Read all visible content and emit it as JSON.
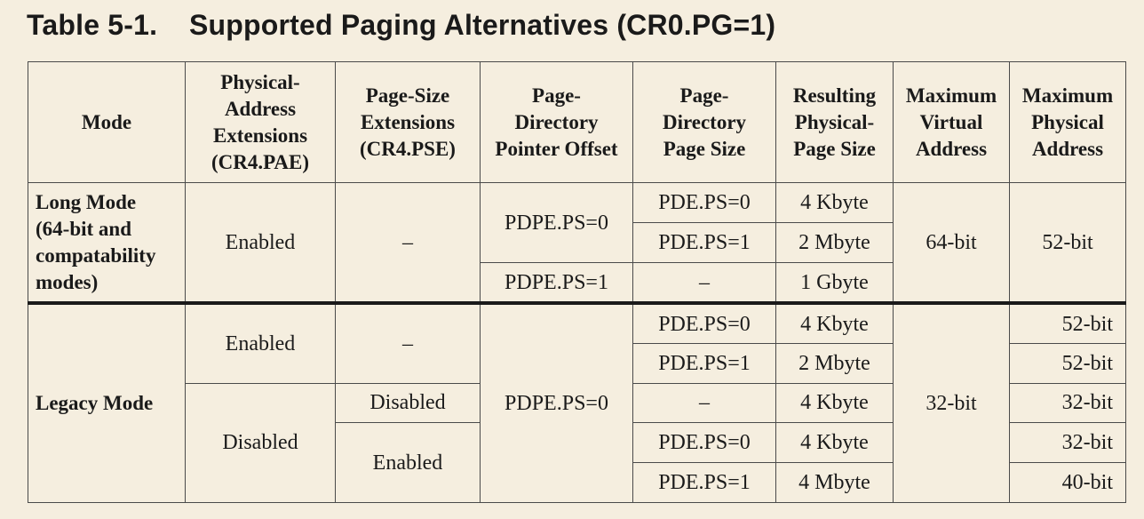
{
  "title": {
    "number": "Table 5-1.",
    "text": "Supported Paging Alternatives (CR0.PG=1)"
  },
  "headers": [
    [
      "Mode"
    ],
    [
      "Physical-",
      "Address",
      "Extensions",
      "(CR4.PAE)"
    ],
    [
      "Page-Size",
      "Extensions",
      "(CR4.PSE)"
    ],
    [
      "Page-",
      "Directory",
      "Pointer Offset"
    ],
    [
      "Page-",
      "Directory",
      "Page Size"
    ],
    [
      "Resulting",
      "Physical-",
      "Page Size"
    ],
    [
      "Maximum",
      "Virtual",
      "Address"
    ],
    [
      "Maximum",
      "Physical",
      "Address"
    ]
  ],
  "long_mode": {
    "mode": [
      "Long Mode",
      "(64-bit and",
      "compatability",
      "modes)"
    ],
    "pae": "Enabled",
    "pse": "–",
    "pdpe": [
      "PDPE.PS=0",
      "PDPE.PS=1"
    ],
    "pde": [
      "PDE.PS=0",
      "PDE.PS=1",
      "–"
    ],
    "page_size": [
      "4 Kbyte",
      "2 Mbyte",
      "1 Gbyte"
    ],
    "virtual": "64-bit",
    "physical": "52-bit"
  },
  "legacy_mode": {
    "mode": "Legacy Mode",
    "pae": [
      "Enabled",
      "Disabled"
    ],
    "pse": [
      "–",
      "Disabled",
      "Enabled"
    ],
    "pdpe": "PDPE.PS=0",
    "pde": [
      "PDE.PS=0",
      "PDE.PS=1",
      "–",
      "PDE.PS=0",
      "PDE.PS=1"
    ],
    "page_size": [
      "4 Kbyte",
      "2 Mbyte",
      "4 Kbyte",
      "4 Kbyte",
      "4 Mbyte"
    ],
    "virtual": "32-bit",
    "physical": [
      "52-bit",
      "52-bit",
      "32-bit",
      "32-bit",
      "40-bit"
    ]
  }
}
